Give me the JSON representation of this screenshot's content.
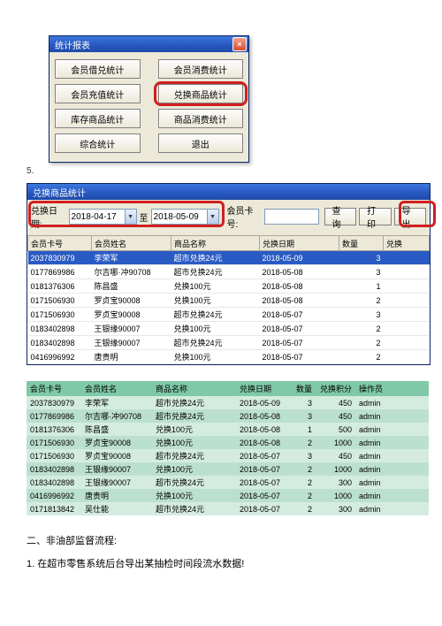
{
  "dialog": {
    "title": "统计报表",
    "buttons": {
      "r0c0": "会员借兑统计",
      "r0c1": "会员消费统计",
      "r1c0": "会员充值统计",
      "r1c1": "兑换商品统计",
      "r2c0": "库存商品统计",
      "r2c1": "商品消费统计",
      "r3c0": "综合统计",
      "r3c1": "退出"
    },
    "close": "×"
  },
  "step5": "5.",
  "listwin": {
    "title": "兑换商品统计",
    "labels": {
      "date": "兑换日期:",
      "to": "至",
      "card": "会员卡号:"
    },
    "date_from": "2018-04-17",
    "date_to": "2018-05-09",
    "card_value": "",
    "btn_query": "查询",
    "btn_print": "打印",
    "btn_export": "导出",
    "cols": {
      "c0": "会员卡号",
      "c1": "会员姓名",
      "c2": "商品名称",
      "c3": "兑换日期",
      "c4": "数量",
      "c5": "兑换"
    },
    "rows": [
      {
        "c0": "2037830979",
        "c1": "李荣军",
        "c2": "超市兑换24元",
        "c3": "2018-05-09",
        "c4": "3",
        "sel": true
      },
      {
        "c0": "0177869986",
        "c1": "尔吉哪·冲90708",
        "c2": "超市兑换24元",
        "c3": "2018-05-08",
        "c4": "3"
      },
      {
        "c0": "0181376306",
        "c1": "陈昌盛",
        "c2": "兑换100元",
        "c3": "2018-05-08",
        "c4": "1"
      },
      {
        "c0": "0171506930",
        "c1": "罗贞宝90008",
        "c2": "兑换100元",
        "c3": "2018-05-08",
        "c4": "2"
      },
      {
        "c0": "0171506930",
        "c1": "罗贞宝90008",
        "c2": "超市兑换24元",
        "c3": "2018-05-07",
        "c4": "3"
      },
      {
        "c0": "0183402898",
        "c1": "王银缘90007",
        "c2": "兑换100元",
        "c3": "2018-05-07",
        "c4": "2"
      },
      {
        "c0": "0183402898",
        "c1": "王银缘90007",
        "c2": "超市兑换24元",
        "c3": "2018-05-07",
        "c4": "2"
      },
      {
        "c0": "0416996992",
        "c1": "唐贵明",
        "c2": "兑换100元",
        "c3": "2018-05-07",
        "c4": "2"
      }
    ]
  },
  "green": {
    "cols": {
      "c0": "会员卡号",
      "c1": "会员姓名",
      "c2": "商品名称",
      "c3": "兑换日期",
      "c4": "数量",
      "c5": "兑换积分",
      "c6": "操作员"
    },
    "rows": [
      {
        "c0": "2037830979",
        "c1": "李荣军",
        "c2": "超市兑换24元",
        "c3": "2018-05-09",
        "c4": "3",
        "c5": "450",
        "c6": "admin"
      },
      {
        "c0": "0177869986",
        "c1": "尔吉哪·冲90708",
        "c2": "超市兑换24元",
        "c3": "2018-05-08",
        "c4": "3",
        "c5": "450",
        "c6": "admin"
      },
      {
        "c0": "0181376306",
        "c1": "陈昌盛",
        "c2": "兑换100元",
        "c3": "2018-05-08",
        "c4": "1",
        "c5": "500",
        "c6": "admin"
      },
      {
        "c0": "0171506930",
        "c1": "罗贞宝90008",
        "c2": "兑换100元",
        "c3": "2018-05-08",
        "c4": "2",
        "c5": "1000",
        "c6": "admin"
      },
      {
        "c0": "0171506930",
        "c1": "罗贞宝90008",
        "c2": "超市兑换24元",
        "c3": "2018-05-07",
        "c4": "3",
        "c5": "450",
        "c6": "admin"
      },
      {
        "c0": "0183402898",
        "c1": "王银缘90007",
        "c2": "兑换100元",
        "c3": "2018-05-07",
        "c4": "2",
        "c5": "1000",
        "c6": "admin"
      },
      {
        "c0": "0183402898",
        "c1": "王银缘90007",
        "c2": "超市兑换24元",
        "c3": "2018-05-07",
        "c4": "2",
        "c5": "300",
        "c6": "admin"
      },
      {
        "c0": "0416996992",
        "c1": "唐贵明",
        "c2": "兑换100元",
        "c3": "2018-05-07",
        "c4": "2",
        "c5": "1000",
        "c6": "admin"
      },
      {
        "c0": "0171813842",
        "c1": "吴仕能",
        "c2": "超市兑换24元",
        "c3": "2018-05-07",
        "c4": "2",
        "c5": "300",
        "c6": "admin"
      }
    ]
  },
  "text": {
    "h2": "二、非油部监督流程:",
    "p1": "1. 在超市零售系统后台导出某抽检时间段流水数据!"
  }
}
